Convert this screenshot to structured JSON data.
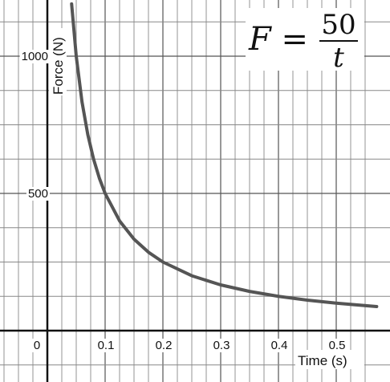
{
  "chart_data": {
    "type": "line",
    "title": "",
    "xlabel": "Time (s)",
    "ylabel": "Force (N)",
    "xlim": [
      -0.08,
      0.57
    ],
    "ylim": [
      -160,
      1190
    ],
    "x_ticks": [
      0.1,
      0.2,
      0.3,
      0.4,
      0.5
    ],
    "x_tick_labels": [
      "0.1",
      "0.2",
      "0.3",
      "0.4",
      "0.5"
    ],
    "y_ticks": [
      500,
      1000
    ],
    "y_tick_labels": [
      "500",
      "1000"
    ],
    "origin_label": "0",
    "grid": true,
    "x_grid_step": 0.025,
    "y_grid_step": 125,
    "curve_color": "#555555",
    "annotation": {
      "lhs": "F =",
      "numerator": "50",
      "denominator": "t"
    },
    "series": [
      {
        "function": "50/t",
        "x": [
          0.042,
          0.05,
          0.06,
          0.07,
          0.08,
          0.09,
          0.1,
          0.125,
          0.15,
          0.175,
          0.2,
          0.25,
          0.3,
          0.35,
          0.4,
          0.45,
          0.5,
          0.57
        ],
        "y": [
          1190.5,
          1000,
          833.3,
          714.3,
          625,
          555.6,
          500,
          400,
          333.3,
          285.7,
          250,
          200,
          166.7,
          142.9,
          125,
          111.1,
          100,
          87.7
        ]
      }
    ]
  }
}
